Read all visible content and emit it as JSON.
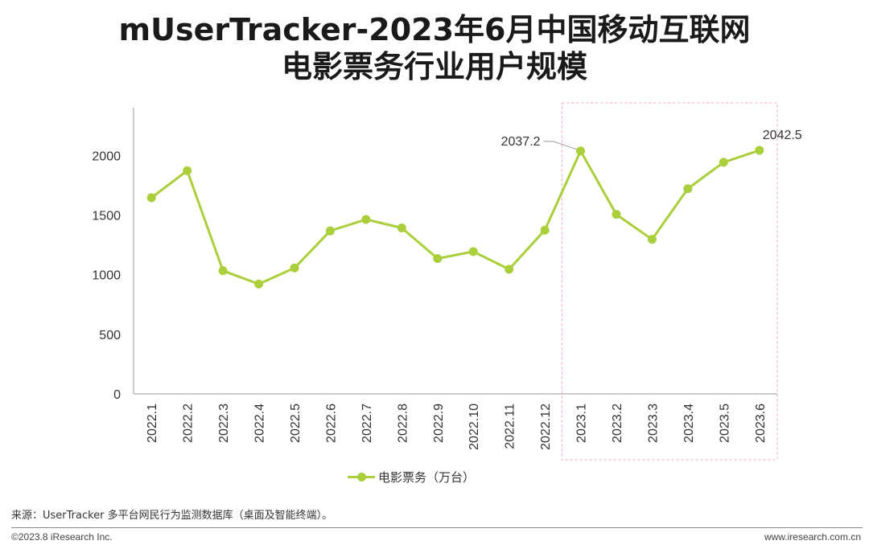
{
  "title_line1": "mUserTracker-2023年6月中国移动互联网",
  "title_line2": "电影票务行业用户规模",
  "chart_data": {
    "type": "line",
    "title": "mUserTracker-2023年6月中国移动互联网电影票务行业用户规模",
    "categories": [
      "2022.1",
      "2022.2",
      "2022.3",
      "2022.4",
      "2022.5",
      "2022.6",
      "2022.7",
      "2022.8",
      "2022.9",
      "2022.10",
      "2022.11",
      "2022.12",
      "2023.1",
      "2023.2",
      "2023.3",
      "2023.4",
      "2023.5",
      "2023.6"
    ],
    "series": [
      {
        "name": "电影票务（万台）",
        "values": [
          1645,
          1872,
          1033,
          921,
          1056,
          1367,
          1463,
          1392,
          1135,
          1193,
          1045,
          1373,
          2037.2,
          1505,
          1296,
          1721,
          1942,
          2042.5
        ]
      }
    ],
    "yticks": [
      0,
      500,
      1000,
      1500,
      2000
    ],
    "ylim": [
      0,
      2400
    ],
    "grid": false,
    "legend": "bottom-center",
    "highlight_range": [
      "2023.1",
      "2023.6"
    ],
    "annotations": [
      {
        "category": "2023.1",
        "label": "2037.2"
      },
      {
        "category": "2023.6",
        "label": "2042.5"
      }
    ],
    "line_color": "#a9cf3b",
    "highlight_color": "#f0a8b5"
  },
  "source_text": "来源：UserTracker 多平台网民行为监测数据库（桌面及智能终端）。",
  "footer_left": "©2023.8 iResearch Inc.",
  "footer_right": "www.iresearch.com.cn"
}
